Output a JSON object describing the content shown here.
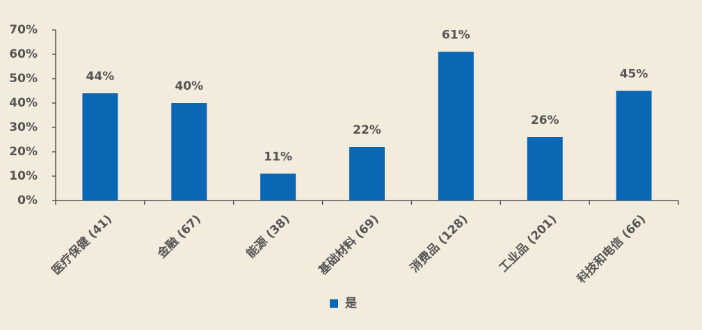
{
  "chart_data": {
    "type": "bar",
    "categories": [
      "医疗保健 (41)",
      "金融 (67)",
      "能源 (38)",
      "基础材料 (69)",
      "消费品 (128)",
      "工业品 (201)",
      "科技和电信 (66)"
    ],
    "series": [
      {
        "name": "是",
        "color": "#0a67b4",
        "values": [
          44,
          40,
          11,
          22,
          61,
          26,
          45
        ],
        "value_labels": [
          "44%",
          "40%",
          "11%",
          "22%",
          "61%",
          "26%",
          "45%"
        ]
      }
    ],
    "ylim": [
      0,
      70
    ],
    "yticks": [
      {
        "value": 0,
        "label": "0%"
      },
      {
        "value": 10,
        "label": "10%"
      },
      {
        "value": 20,
        "label": "20%"
      },
      {
        "value": 30,
        "label": "30%"
      },
      {
        "value": 40,
        "label": "40%"
      },
      {
        "value": 50,
        "label": "50%"
      },
      {
        "value": 60,
        "label": "60%"
      },
      {
        "value": 70,
        "label": "70%"
      }
    ],
    "grid": false,
    "legend": "bottom"
  }
}
